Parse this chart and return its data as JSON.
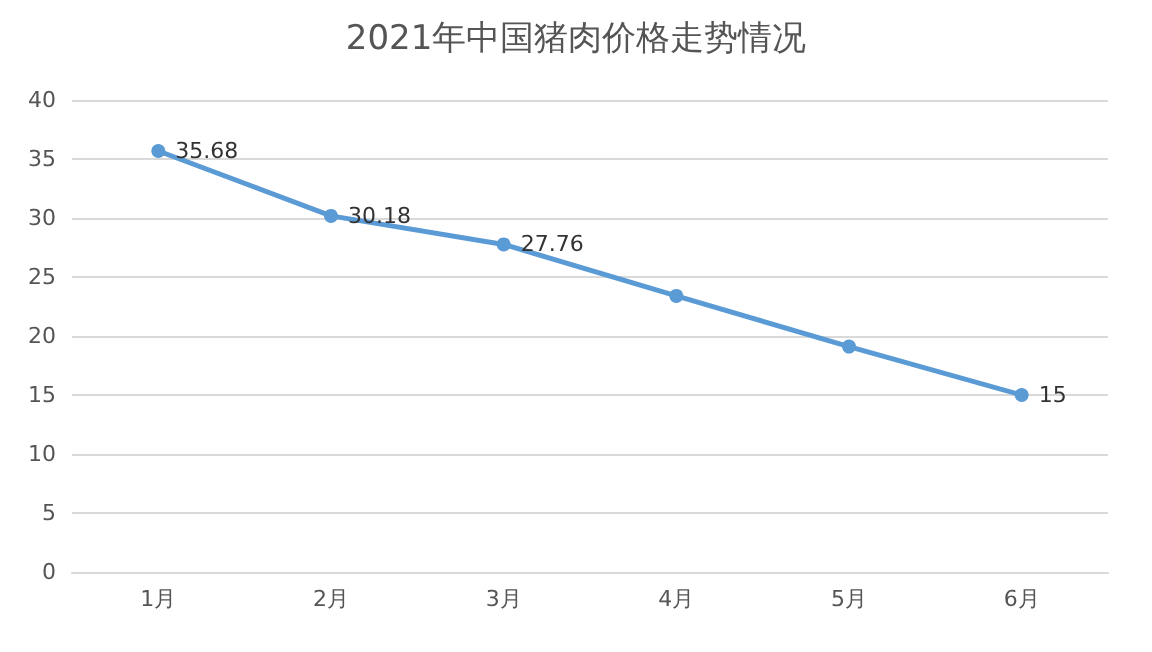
{
  "chart_data": {
    "type": "line",
    "title": "2021年中国猪肉价格走势情况",
    "categories": [
      "1月",
      "2月",
      "3月",
      "4月",
      "5月",
      "6月"
    ],
    "series": [
      {
        "color": "#5b9bd5",
        "values": [
          35.68,
          30.18,
          27.76,
          23.4,
          19.1,
          15
        ],
        "value_labels": [
          "35.68",
          "30.18",
          "27.76",
          null,
          null,
          "15"
        ]
      }
    ],
    "ylim": [
      0,
      40
    ],
    "yticks": [
      0,
      5,
      10,
      15,
      20,
      25,
      30,
      35,
      40
    ],
    "grid": "y",
    "marker": "circle",
    "line_style": "solid"
  }
}
